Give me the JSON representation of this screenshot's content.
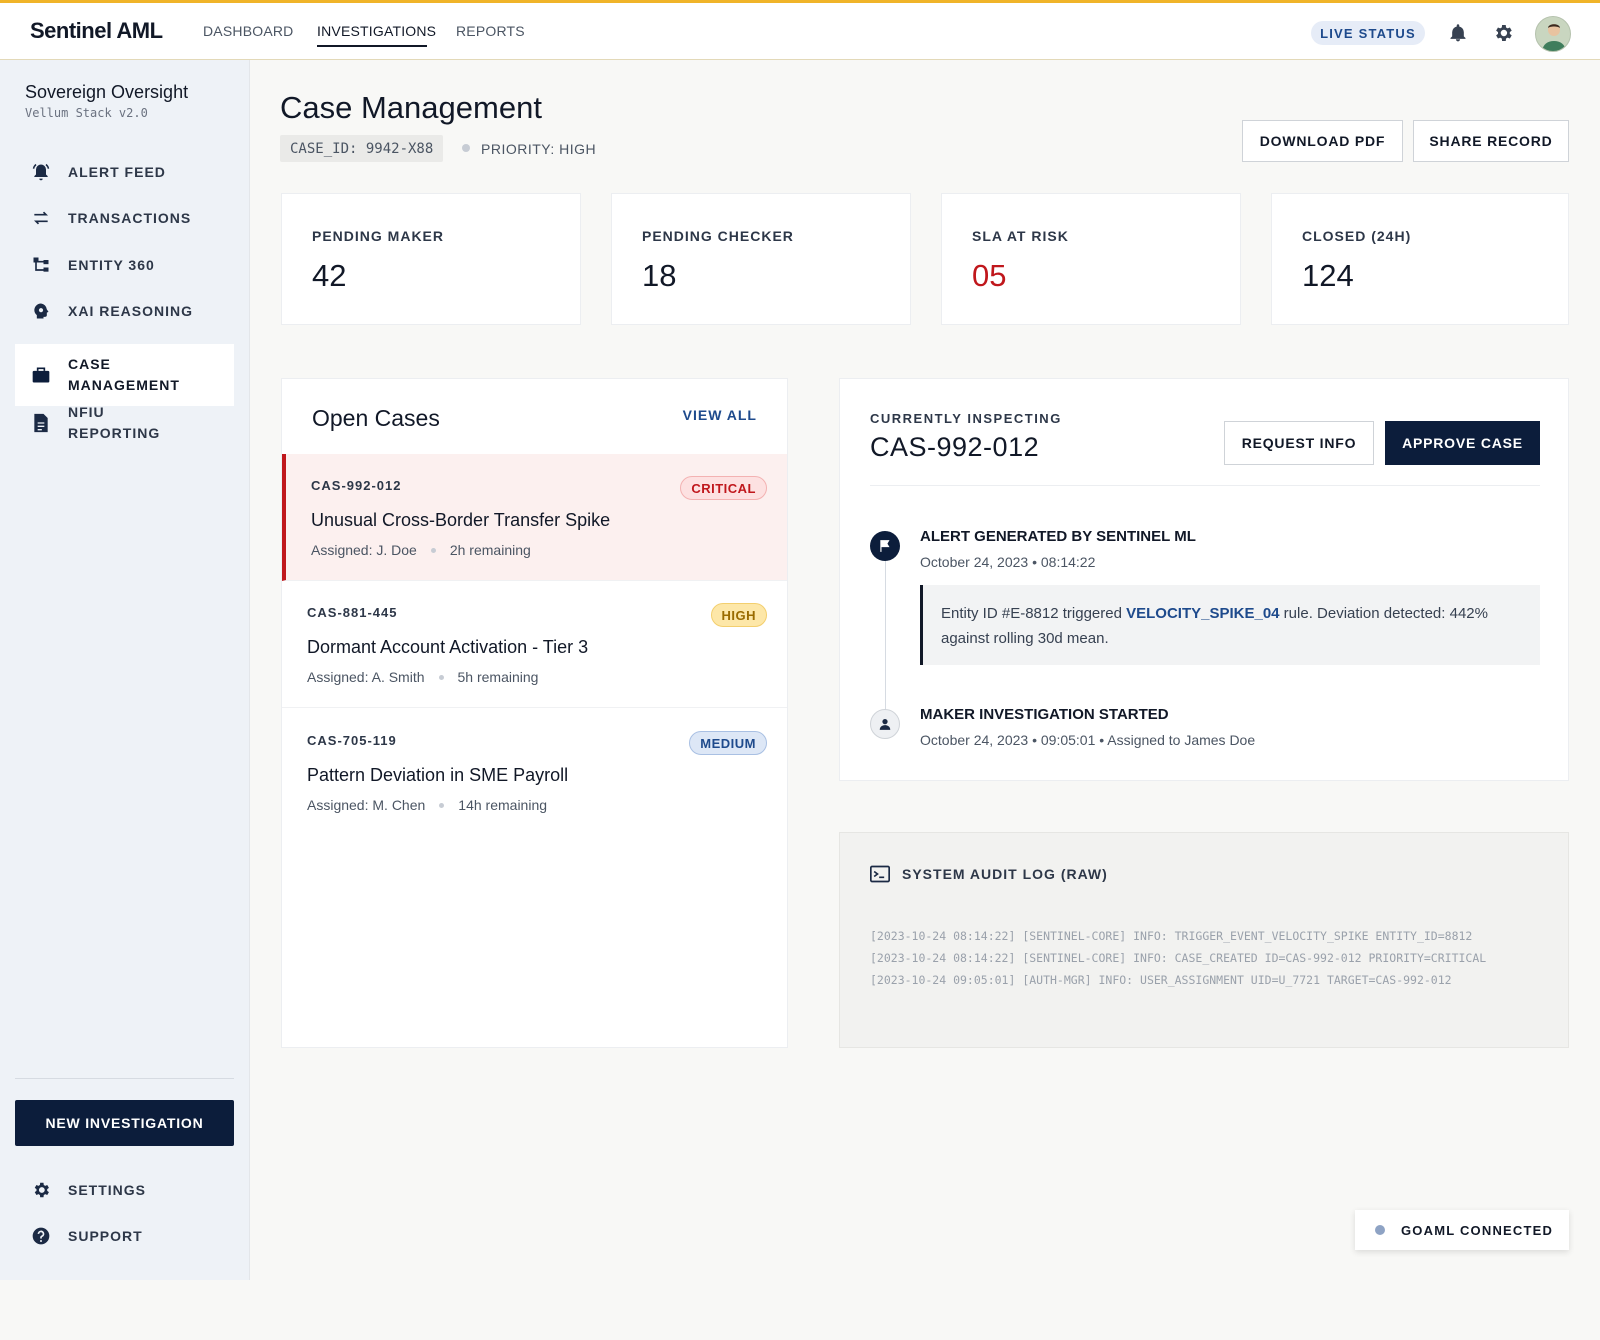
{
  "app": {
    "brand": "Sentinel AML",
    "nav": [
      "DASHBOARD",
      "INVESTIGATIONS",
      "REPORTS"
    ],
    "active_nav": "INVESTIGATIONS",
    "live_status": "LIVE STATUS",
    "accent_color": "#f0b429",
    "primary_color": "#0c1d3b"
  },
  "sidebar": {
    "org_name": "Sovereign Oversight",
    "org_sub": "Vellum Stack v2.0",
    "items": [
      {
        "label": "ALERT FEED",
        "icon": "alarm-bell-icon"
      },
      {
        "label": "TRANSACTIONS",
        "icon": "swap-arrows-icon"
      },
      {
        "label": "ENTITY 360",
        "icon": "hierarchy-icon"
      },
      {
        "label": "XAI REASONING",
        "icon": "brain-gear-icon"
      },
      {
        "label": "CASE MANAGEMENT",
        "icon": "briefcase-icon",
        "active": true
      },
      {
        "label": "NFIU REPORTING",
        "icon": "document-icon"
      }
    ],
    "new_investigation": "NEW INVESTIGATION",
    "footer": [
      {
        "label": "SETTINGS",
        "icon": "gear-icon"
      },
      {
        "label": "SUPPORT",
        "icon": "help-icon"
      }
    ]
  },
  "header": {
    "title": "Case Management",
    "case_id": "CASE_ID: 9942-X88",
    "priority": "PRIORITY: HIGH",
    "download_pdf": "DOWNLOAD PDF",
    "share_record": "SHARE RECORD"
  },
  "stats": [
    {
      "label": "PENDING MAKER",
      "value": "42"
    },
    {
      "label": "PENDING CHECKER",
      "value": "18"
    },
    {
      "label": "SLA AT RISK",
      "value": "05"
    },
    {
      "label": "CLOSED (24H)",
      "value": "124"
    }
  ],
  "open_cases": {
    "title": "Open Cases",
    "view_all": "VIEW ALL",
    "cases": [
      {
        "id": "CAS-992-012",
        "badge": "CRITICAL",
        "title": "Unusual Cross-Border Transfer Spike",
        "assigned": "Assigned: J. Doe",
        "remaining": "2h remaining"
      },
      {
        "id": "CAS-881-445",
        "badge": "HIGH",
        "title": "Dormant Account Activation - Tier 3",
        "assigned": "Assigned: A. Smith",
        "remaining": "5h remaining"
      },
      {
        "id": "CAS-705-119",
        "badge": "MEDIUM",
        "title": "Pattern Deviation in SME Payroll",
        "assigned": "Assigned: M. Chen",
        "remaining": "14h remaining"
      }
    ]
  },
  "inspecting": {
    "label": "CURRENTLY INSPECTING",
    "case_id": "CAS-992-012",
    "request_info": "REQUEST INFO",
    "approve_case": "APPROVE CASE",
    "timeline": [
      {
        "title": "ALERT GENERATED BY SENTINEL ML",
        "sub": "October 24, 2023 • 08:14:22"
      },
      {
        "title": "MAKER INVESTIGATION STARTED",
        "sub": "October 24, 2023 • 09:05:01 • Assigned to James Doe"
      }
    ],
    "alert_note": {
      "prefix": "Entity ID #E-8812 triggered ",
      "rule": "VELOCITY_SPIKE_04",
      "suffix": " rule. Deviation detected: 442% against rolling 30d mean."
    }
  },
  "audit_log": {
    "title": "SYSTEM AUDIT LOG (RAW)",
    "lines": [
      "[2023-10-24 08:14:22] [SENTINEL-CORE] INFO: TRIGGER_EVENT_VELOCITY_SPIKE ENTITY_ID=8812",
      "[2023-10-24 08:14:22] [SENTINEL-CORE] INFO: CASE_CREATED ID=CAS-992-012 PRIORITY=CRITICAL",
      "[2023-10-24 09:05:01] [AUTH-MGR] INFO: USER_ASSIGNMENT UID=U_7721 TARGET=CAS-992-012"
    ]
  },
  "status": {
    "goaml": "GOAML CONNECTED"
  }
}
